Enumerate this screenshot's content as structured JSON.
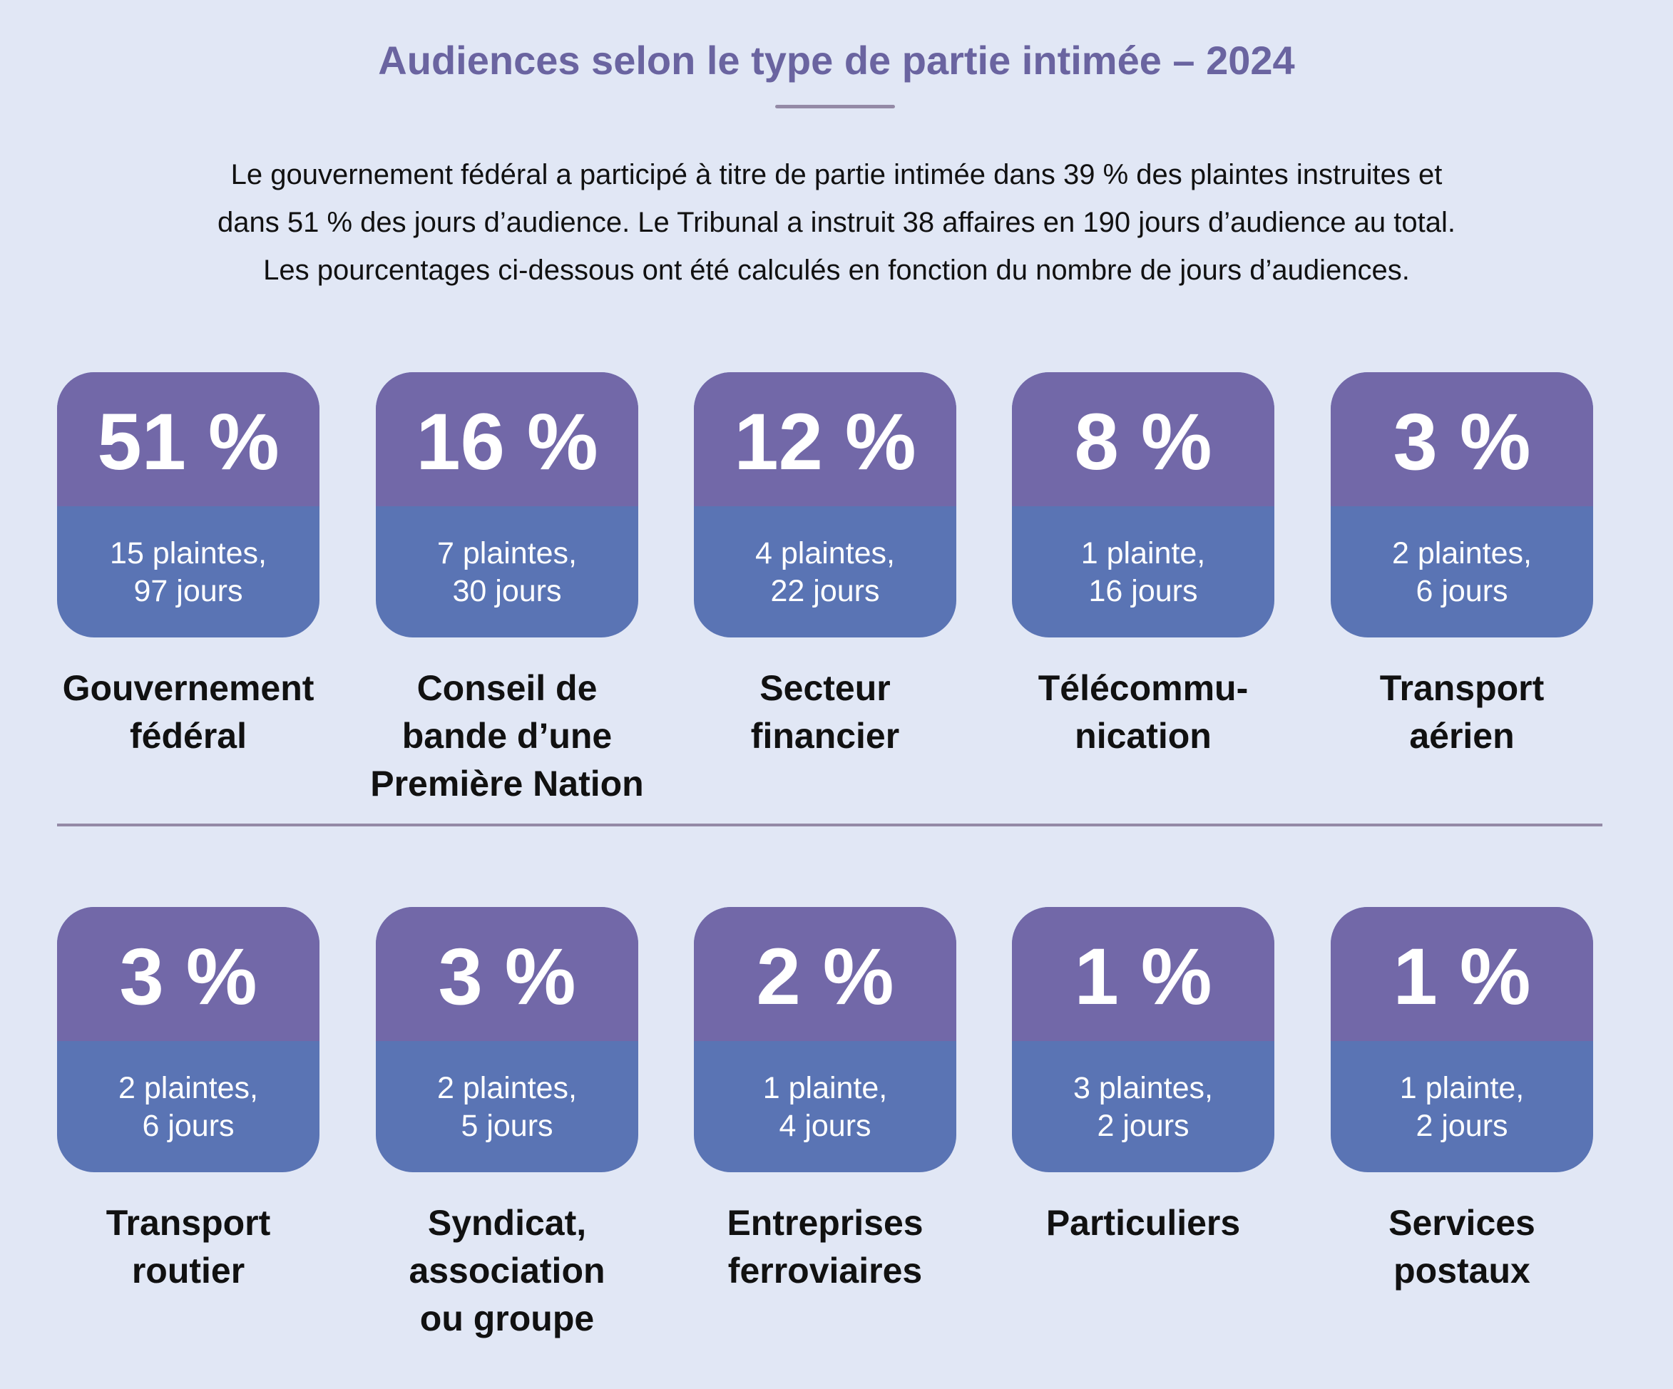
{
  "title": "Audiences selon le type de partie intimée – 2024",
  "intro": [
    "Le gouvernement fédéral a participé à titre de partie intimée dans 39 % des plaintes instruites et",
    "dans 51 % des jours d’audience. Le Tribunal a instruit 38 affaires en 190 jours d’audience au total.",
    "Les pourcentages ci-dessous ont été calculés en fonction du nombre de jours d’audiences."
  ],
  "colors": {
    "background": "#e1e7f5",
    "card_top": "#7268a8",
    "card_bottom": "#5a74b4",
    "title": "#6a64a0"
  },
  "cards": [
    {
      "percent": "51 %",
      "line1": "15 plaintes,",
      "line2": "97 jours",
      "label": [
        "Gouvernement",
        "fédéral"
      ]
    },
    {
      "percent": "16 %",
      "line1": "7 plaintes,",
      "line2": "30 jours",
      "label": [
        "Conseil de",
        "bande d’une",
        "Première Nation"
      ]
    },
    {
      "percent": "12 %",
      "line1": "4 plaintes,",
      "line2": "22 jours",
      "label": [
        "Secteur",
        "financier"
      ]
    },
    {
      "percent": "8 %",
      "line1": "1 plainte,",
      "line2": "16 jours",
      "label": [
        "Télécommu-",
        "nication"
      ]
    },
    {
      "percent": "3 %",
      "line1": "2 plaintes,",
      "line2": "6 jours",
      "label": [
        "Transport",
        "aérien"
      ]
    },
    {
      "percent": "3 %",
      "line1": "2 plaintes,",
      "line2": "6 jours",
      "label": [
        "Transport",
        "routier"
      ]
    },
    {
      "percent": "3 %",
      "line1": "2 plaintes,",
      "line2": "5 jours",
      "label": [
        "Syndicat,",
        "association",
        "ou groupe"
      ]
    },
    {
      "percent": "2 %",
      "line1": "1 plainte,",
      "line2": "4 jours",
      "label": [
        "Entreprises",
        "ferroviaires"
      ]
    },
    {
      "percent": "1 %",
      "line1": "3 plaintes,",
      "line2": "2 jours",
      "label": [
        "Particuliers"
      ]
    },
    {
      "percent": "1 %",
      "line1": "1 plainte,",
      "line2": "2 jours",
      "label": [
        "Services",
        "postaux"
      ]
    }
  ]
}
